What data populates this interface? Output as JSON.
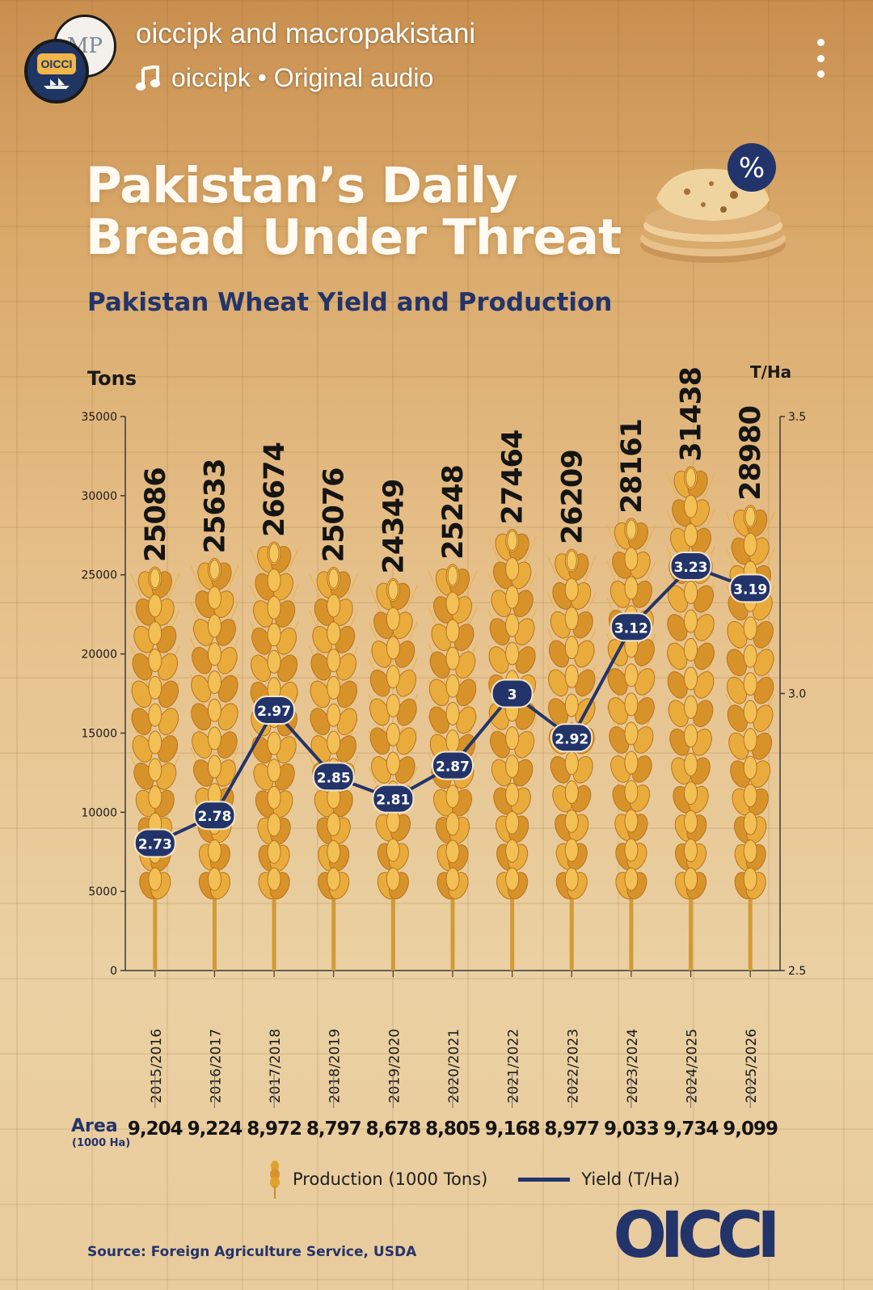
{
  "header": {
    "accounts": "oiccipk and macropakistani",
    "audio": "oiccipk • Original audio",
    "avatar_back_text": "MP",
    "avatar_front_text": "OICCI"
  },
  "title": {
    "line1": "Pakistan’s Daily",
    "line2": "Bread Under Threat"
  },
  "subtitle": "Pakistan Wheat Yield and Production",
  "percent_badge": "%",
  "chart_data": {
    "type": "bar",
    "categories": [
      "2015/2016",
      "2016/2017",
      "2017/2018",
      "2018/2019",
      "2019/2020",
      "2020/2021",
      "2021/2022",
      "2022/2023",
      "2023/2024",
      "2024/2025",
      "2025/2026"
    ],
    "series": [
      {
        "name": "Production (1000 Tons)",
        "type": "bar",
        "axis": "left",
        "values": [
          25086,
          25633,
          26674,
          25076,
          24349,
          25248,
          27464,
          26209,
          28161,
          31438,
          28980
        ],
        "labels": [
          "25086",
          "25633",
          "26674",
          "25076",
          "24349",
          "25248",
          "27464",
          "26209",
          "28161",
          "31438",
          "28980"
        ]
      },
      {
        "name": "Yield (T/Ha)",
        "type": "line",
        "axis": "right",
        "values": [
          2.73,
          2.78,
          2.97,
          2.85,
          2.81,
          2.87,
          3,
          2.92,
          3.12,
          3.23,
          3.19
        ],
        "labels": [
          "2.73",
          "2.78",
          "2.97",
          "2.85",
          "2.81",
          "2.87",
          "3",
          "2.92",
          "3.12",
          "3.23",
          "3.19"
        ]
      }
    ],
    "ylabel": "Tons",
    "y2label": "T/Ha",
    "ylim": [
      0,
      35000
    ],
    "y2lim": [
      2.5,
      3.5
    ],
    "yticks": [
      "0",
      "5000",
      "10000",
      "15000",
      "20000",
      "25000",
      "30000",
      "35000"
    ],
    "y2ticks": [
      "2.5",
      "3.0",
      "3.5"
    ],
    "area": {
      "label": "Area",
      "unit": "(1000 Ha)",
      "values": [
        "9,204",
        "9,224",
        "8,972",
        "8,797",
        "8,678",
        "8,805",
        "9,168",
        "8,977",
        "9,033",
        "9,734",
        "9,099"
      ]
    },
    "legend_position": "bottom",
    "colors": {
      "bar": "#e0a22e",
      "line": "#23346a",
      "text": "#1a1a1a"
    }
  },
  "source": "Source: Foreign Agriculture Service, USDA",
  "logo_text": "OICCI"
}
